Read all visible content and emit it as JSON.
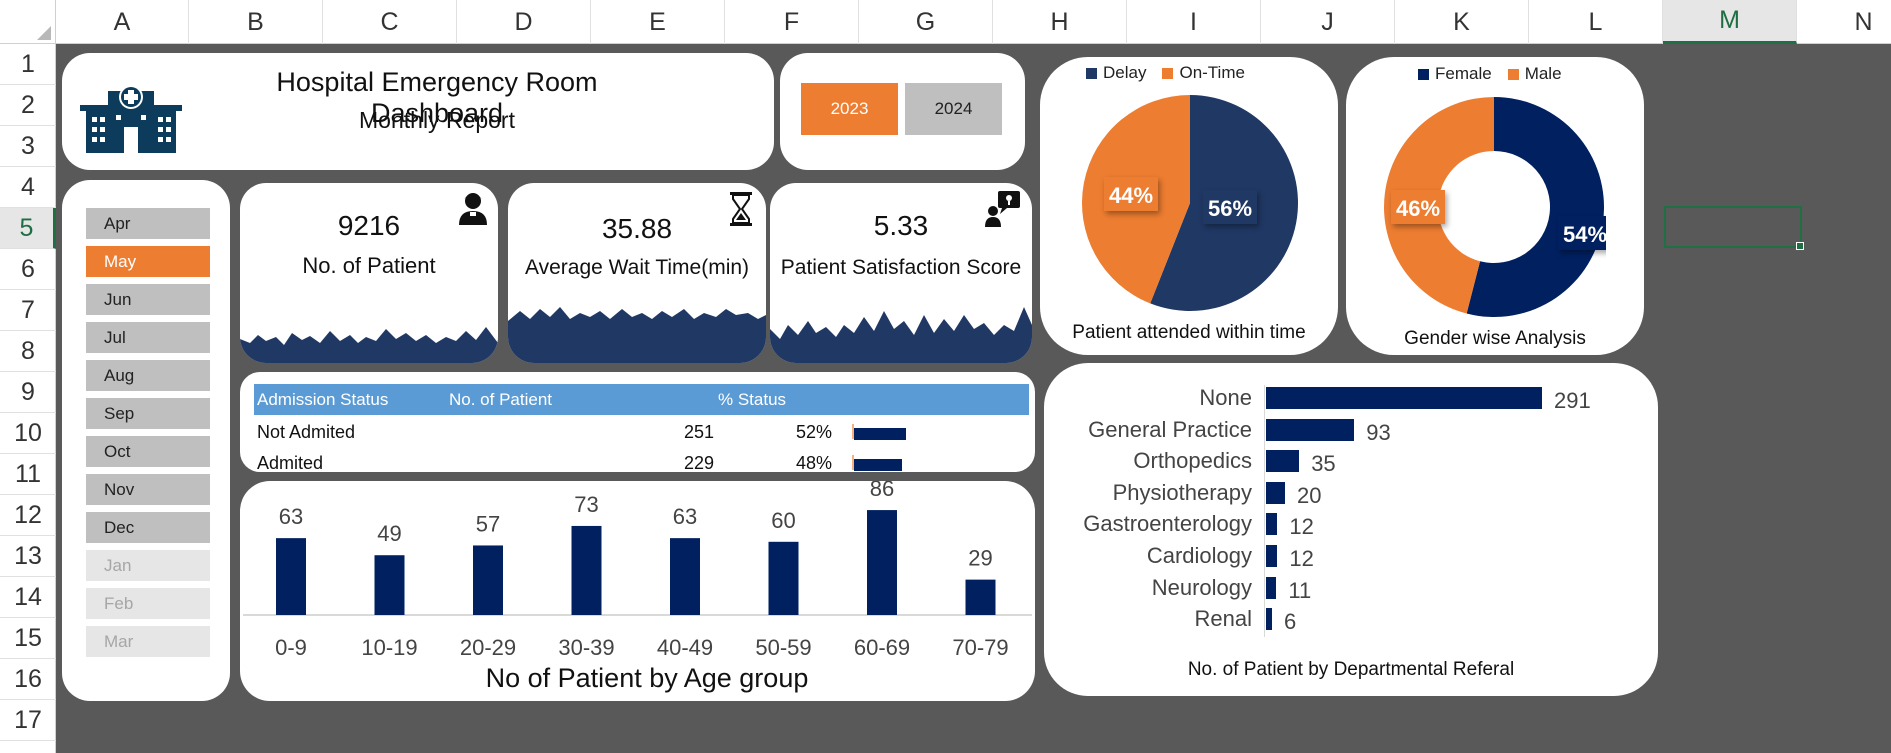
{
  "sheet": {
    "columns": [
      "A",
      "B",
      "C",
      "D",
      "E",
      "F",
      "G",
      "H",
      "I",
      "J",
      "K",
      "L",
      "M",
      "N"
    ],
    "rows": [
      "1",
      "2",
      "3",
      "4",
      "5",
      "6",
      "7",
      "8",
      "9",
      "10",
      "11",
      "12",
      "13",
      "14",
      "15",
      "16",
      "17"
    ],
    "selected_column": "M",
    "selected_row": "5"
  },
  "header": {
    "title": "Hospital Emergency Room Dashboard",
    "subtitle": "Monthly Report",
    "icon": "hospital-icon"
  },
  "years": {
    "items": [
      {
        "label": "2023",
        "active": true
      },
      {
        "label": "2024",
        "active": false
      }
    ]
  },
  "months": {
    "items": [
      {
        "label": "Apr",
        "state": "normal"
      },
      {
        "label": "May",
        "state": "active"
      },
      {
        "label": "Jun",
        "state": "normal"
      },
      {
        "label": "Jul",
        "state": "normal"
      },
      {
        "label": "Aug",
        "state": "normal"
      },
      {
        "label": "Sep",
        "state": "normal"
      },
      {
        "label": "Oct",
        "state": "normal"
      },
      {
        "label": "Nov",
        "state": "normal"
      },
      {
        "label": "Dec",
        "state": "normal"
      },
      {
        "label": "Jan",
        "state": "dim"
      },
      {
        "label": "Feb",
        "state": "dim"
      },
      {
        "label": "Mar",
        "state": "dim"
      }
    ]
  },
  "kpis": {
    "patients": {
      "value": "9216",
      "label": "No. of Patient",
      "icon": "patient-icon"
    },
    "wait": {
      "value": "35.88",
      "label": "Average Wait Time(min)",
      "icon": "hourglass-icon"
    },
    "satisfaction": {
      "value": "5.33",
      "label": "Patient Satisfaction Score",
      "icon": "feedback-icon"
    }
  },
  "admission": {
    "headers": [
      "Admission Status",
      "No. of Patient",
      "% Status"
    ],
    "rows": [
      {
        "status": "Not Admited",
        "count": "251",
        "percent": "52%",
        "share": 0.52
      },
      {
        "status": "Admited",
        "count": "229",
        "percent": "48%",
        "share": 0.48
      }
    ]
  },
  "colors": {
    "navy": "#002060",
    "blue": "#203864",
    "orange": "#ed7d31",
    "header_blue": "#5b9bd5",
    "grey_btn": "#bfbfbf"
  },
  "chart_data": [
    {
      "type": "pie",
      "title": "Patient attended within time",
      "categories": [
        "Delay",
        "On-Time"
      ],
      "values": [
        56,
        44
      ],
      "labels": [
        "56%",
        "44%"
      ],
      "legend": "top"
    },
    {
      "type": "pie",
      "title": "Gender wise Analysis",
      "categories": [
        "Female",
        "Male"
      ],
      "values": [
        54,
        46
      ],
      "labels": [
        "54%",
        "46%"
      ],
      "legend": "top",
      "donut": true
    },
    {
      "type": "bar",
      "title": "No of Patient by Age group",
      "categories": [
        "0-9",
        "10-19",
        "20-29",
        "30-39",
        "40-49",
        "50-59",
        "60-69",
        "70-79"
      ],
      "values": [
        63,
        49,
        57,
        73,
        63,
        60,
        86,
        29
      ],
      "ylim": [
        0,
        100
      ],
      "grid": false
    },
    {
      "type": "bar",
      "orientation": "horizontal",
      "title": "No. of Patient by Departmental Referal",
      "categories": [
        "None",
        "General Practice",
        "Orthopedics",
        "Physiotherapy",
        "Gastroenterology",
        "Cardiology",
        "Neurology",
        "Renal"
      ],
      "values": [
        291,
        93,
        35,
        20,
        12,
        12,
        11,
        6
      ],
      "xlim": [
        0,
        300
      ],
      "grid": false
    }
  ]
}
